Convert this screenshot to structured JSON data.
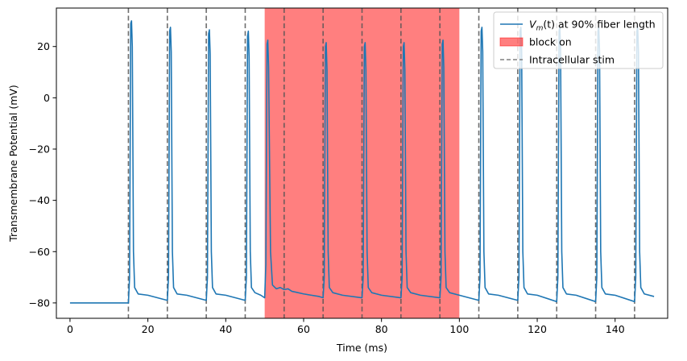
{
  "chart_data": {
    "type": "line",
    "title": "",
    "xlabel": "Time (ms)",
    "ylabel": "Transmembrane Potential (mV)",
    "xlim": [
      -3.5,
      153.5
    ],
    "ylim": [
      -86,
      35
    ],
    "xticks": [
      0,
      20,
      40,
      60,
      80,
      100,
      120,
      140
    ],
    "yticks": [
      -80,
      -60,
      -40,
      -20,
      0,
      20
    ],
    "grid": false,
    "legend_position": "top-right",
    "legend": [
      {
        "kind": "line",
        "prefix": "V",
        "prefix_sub": "m",
        "label": "(t) at 90% fiber length",
        "color": "#1f77b4"
      },
      {
        "kind": "patch",
        "label": "block on",
        "color": "#ff0000"
      },
      {
        "kind": "dashed",
        "label": "Intracellular stim",
        "color": "#808080"
      }
    ],
    "block_region": {
      "start": 50,
      "end": 100,
      "color": "#ff0000",
      "opacity": 0.5
    },
    "stim_times": [
      15,
      25,
      35,
      45,
      55,
      65,
      75,
      85,
      95,
      105,
      115,
      125,
      135,
      145
    ],
    "series": [
      {
        "color": "#1f77b4",
        "x": [
          0,
          15,
          15.3,
          15.6,
          15.8,
          16.0,
          16.3,
          16.6,
          17.5,
          20,
          25,
          25.3,
          25.6,
          25.8,
          26.0,
          26.3,
          26.6,
          27.5,
          30,
          35,
          35.3,
          35.6,
          35.8,
          36.0,
          36.3,
          36.6,
          37.5,
          40,
          45,
          45.3,
          45.6,
          45.8,
          46.0,
          46.3,
          46.6,
          47.5,
          49,
          50,
          50.3,
          50.6,
          50.8,
          51.0,
          51.5,
          52,
          53,
          54,
          55,
          56,
          57,
          58,
          60,
          62,
          64,
          65,
          65.3,
          65.6,
          65.8,
          66.0,
          66.3,
          66.6,
          67.5,
          70,
          75,
          75.3,
          75.6,
          75.8,
          76.0,
          76.3,
          76.6,
          77.5,
          80,
          85,
          85.3,
          85.6,
          85.8,
          86.0,
          86.3,
          86.6,
          87.5,
          90,
          95,
          95.3,
          95.6,
          95.8,
          96.0,
          96.3,
          96.6,
          97.5,
          100,
          105,
          105.3,
          105.6,
          105.8,
          106.0,
          106.3,
          106.6,
          107.5,
          110,
          115,
          115.3,
          115.6,
          115.8,
          116.0,
          116.3,
          116.6,
          117.5,
          120,
          125,
          125.3,
          125.6,
          125.8,
          126.0,
          126.3,
          126.6,
          127.5,
          130,
          135,
          135.3,
          135.6,
          135.8,
          136.0,
          136.3,
          136.6,
          137.5,
          140,
          145,
          145.3,
          145.6,
          145.8,
          146.0,
          146.3,
          146.6,
          147.5,
          150
        ],
        "y": [
          -80,
          -80,
          -70,
          29,
          30,
          20,
          -60,
          -74,
          -76.5,
          -77,
          -79,
          -70,
          26,
          27.5,
          18,
          -60,
          -74,
          -76.5,
          -77,
          -79,
          -70,
          25,
          26.5,
          17,
          -60,
          -74,
          -76.5,
          -77,
          -79,
          -70,
          24,
          26,
          16,
          -60,
          -74,
          -76,
          -77,
          -78,
          -65,
          21,
          22.5,
          12,
          -60,
          -73,
          -74.5,
          -74,
          -74.8,
          -74.5,
          -75.5,
          -75.8,
          -76.5,
          -77,
          -77.5,
          -78,
          -70,
          20,
          21.5,
          11,
          -60,
          -74,
          -76,
          -77,
          -78,
          -70,
          20,
          21.5,
          11,
          -60,
          -74,
          -76,
          -77,
          -78,
          -70,
          20,
          21.5,
          11,
          -60,
          -74,
          -76,
          -77,
          -78,
          -70,
          21,
          22.5,
          12,
          -60,
          -74,
          -76,
          -77,
          -79,
          -70,
          26,
          27.5,
          18,
          -60,
          -74,
          -76.5,
          -77,
          -79,
          -70,
          26,
          27.5,
          18,
          -60,
          -74,
          -76.5,
          -77,
          -79.5,
          -70,
          26,
          27.5,
          18,
          -60,
          -74,
          -76.5,
          -77,
          -79.5,
          -70,
          26,
          27.5,
          18,
          -60,
          -74,
          -76.5,
          -77,
          -79.5,
          -70,
          26,
          27.5,
          18,
          -60,
          -74,
          -76.5,
          -77.5
        ]
      }
    ]
  }
}
